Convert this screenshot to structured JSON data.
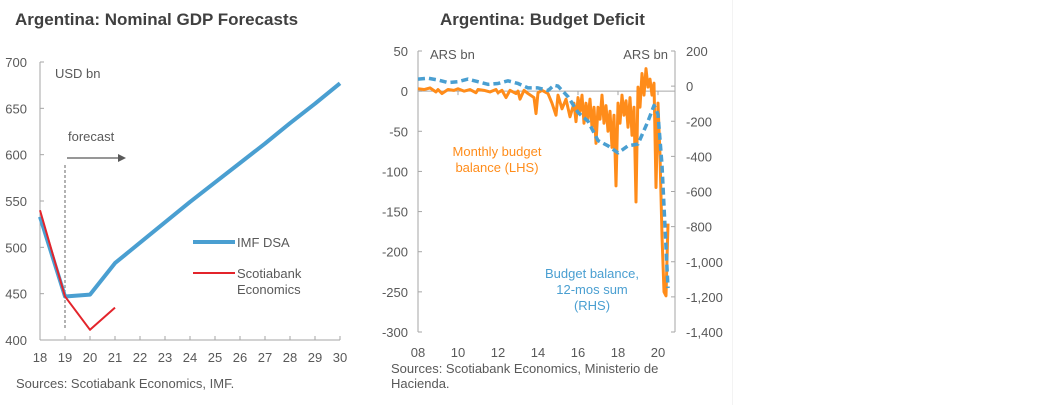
{
  "chart_data": [
    {
      "type": "line",
      "title": "Argentina:  Nominal  GDP Forecasts",
      "unit_label": "USD bn",
      "xlabel": "",
      "ylabel": "USD bn",
      "ylim": [
        400,
        700
      ],
      "y_ticks": [
        400,
        450,
        500,
        550,
        600,
        650,
        700
      ],
      "x": [
        18,
        19,
        20,
        21,
        22,
        23,
        24,
        25,
        26,
        27,
        28,
        29,
        30
      ],
      "x_tick_labels": [
        "18",
        "19",
        "20",
        "21",
        "22",
        "23",
        "24",
        "25",
        "26",
        "27",
        "28",
        "29",
        "30"
      ],
      "forecast_label": "forecast",
      "forecast_start": 19,
      "series": [
        {
          "name": "IMF DSA",
          "color": "#4a9fd1",
          "values": [
            533,
            447,
            449,
            483,
            505,
            527,
            549,
            570,
            591,
            612,
            634,
            655,
            677
          ]
        },
        {
          "name": "Scotiabank Economics",
          "color": "#e3242b",
          "values": [
            540,
            447,
            411,
            435,
            null,
            null,
            null,
            null,
            null,
            null,
            null,
            null,
            null
          ]
        }
      ],
      "legend": {
        "placement": "center-right",
        "entries": [
          "IMF DSA",
          "Scotiabank\nEconomics"
        ]
      },
      "source": "Sources: Scotiabank Economics, IMF.",
      "grid": false
    },
    {
      "type": "line",
      "title": "Argentina:  Budget Deficit",
      "lhs_unit_label": "ARS bn",
      "rhs_unit_label": "ARS bn",
      "ylim": [
        -300,
        50
      ],
      "y_ticks": [
        50,
        0,
        -50,
        -100,
        -150,
        -200,
        -250,
        -300
      ],
      "y_tick_labels": [
        "50",
        "0",
        "-50",
        "-100",
        "-150",
        "-200",
        "-250",
        "-300"
      ],
      "y2lim": [
        -1400,
        200
      ],
      "y2_ticks": [
        200,
        0,
        -200,
        -400,
        -600,
        -800,
        -1000,
        -1200,
        -1400
      ],
      "y2_tick_labels": [
        "200",
        "0",
        "-200",
        "-400",
        "-600",
        "-800",
        "-1,000",
        "-1,200",
        "-1,400"
      ],
      "xlim": [
        2008,
        2020.8
      ],
      "x_ticks": [
        2008,
        2010,
        2012,
        2014,
        2016,
        2018,
        2020
      ],
      "x_tick_labels": [
        "08",
        "10",
        "12",
        "14",
        "16",
        "18",
        "20"
      ],
      "series": [
        {
          "name": "Monthly budget balance (LHS)",
          "axis": "left",
          "color": "#ff8c1a",
          "style": "solid",
          "label": "Monthly budget\nbalance (LHS)",
          "points": [
            [
              2008.0,
              3
            ],
            [
              2008.3,
              2
            ],
            [
              2008.6,
              4
            ],
            [
              2008.9,
              -1
            ],
            [
              2009.0,
              2
            ],
            [
              2009.2,
              -3
            ],
            [
              2009.5,
              2
            ],
            [
              2009.8,
              1
            ],
            [
              2010.0,
              3
            ],
            [
              2010.3,
              0
            ],
            [
              2010.6,
              2
            ],
            [
              2010.9,
              -2
            ],
            [
              2011.0,
              2
            ],
            [
              2011.3,
              1
            ],
            [
              2011.6,
              -1
            ],
            [
              2011.9,
              2
            ],
            [
              2012.0,
              -2
            ],
            [
              2012.2,
              1
            ],
            [
              2012.4,
              -8
            ],
            [
              2012.6,
              1
            ],
            [
              2012.9,
              -3
            ],
            [
              2013.0,
              0
            ],
            [
              2013.1,
              -10
            ],
            [
              2013.3,
              1
            ],
            [
              2013.5,
              -3
            ],
            [
              2013.8,
              -8
            ],
            [
              2013.9,
              -28
            ],
            [
              2014.0,
              -2
            ],
            [
              2014.2,
              1
            ],
            [
              2014.5,
              -3
            ],
            [
              2014.7,
              -15
            ],
            [
              2014.9,
              -30
            ],
            [
              2015.0,
              -5
            ],
            [
              2015.2,
              -22
            ],
            [
              2015.4,
              -10
            ],
            [
              2015.6,
              -32
            ],
            [
              2015.8,
              -15
            ],
            [
              2015.9,
              -38
            ],
            [
              2016.0,
              -8
            ],
            [
              2016.1,
              -25
            ],
            [
              2016.2,
              -5
            ],
            [
              2016.3,
              -40
            ],
            [
              2016.4,
              -15
            ],
            [
              2016.5,
              -35
            ],
            [
              2016.6,
              -10
            ],
            [
              2016.7,
              -45
            ],
            [
              2016.8,
              -20
            ],
            [
              2016.9,
              -65
            ],
            [
              2017.0,
              -20
            ],
            [
              2017.1,
              -35
            ],
            [
              2017.2,
              -5
            ],
            [
              2017.3,
              -40
            ],
            [
              2017.4,
              -18
            ],
            [
              2017.5,
              -50
            ],
            [
              2017.6,
              -25
            ],
            [
              2017.7,
              -70
            ],
            [
              2017.8,
              -30
            ],
            [
              2017.9,
              -118
            ],
            [
              2018.0,
              -15
            ],
            [
              2018.1,
              -40
            ],
            [
              2018.2,
              -5
            ],
            [
              2018.3,
              -30
            ],
            [
              2018.4,
              -12
            ],
            [
              2018.5,
              -45
            ],
            [
              2018.6,
              -8
            ],
            [
              2018.7,
              -55
            ],
            [
              2018.8,
              -20
            ],
            [
              2018.9,
              -138
            ],
            [
              2019.0,
              5
            ],
            [
              2019.1,
              -20
            ],
            [
              2019.2,
              22
            ],
            [
              2019.3,
              -5
            ],
            [
              2019.4,
              28
            ],
            [
              2019.5,
              5
            ],
            [
              2019.6,
              15
            ],
            [
              2019.7,
              -5
            ],
            [
              2019.8,
              10
            ],
            [
              2019.9,
              -120
            ],
            [
              2020.0,
              -15
            ],
            [
              2020.1,
              -80
            ],
            [
              2020.2,
              -180
            ],
            [
              2020.3,
              -250
            ],
            [
              2020.4,
              -255
            ],
            [
              2020.5,
              -165
            ]
          ]
        },
        {
          "name": "Budget balance, 12-mos sum (RHS)",
          "axis": "right",
          "color": "#4a9fd1",
          "style": "dashed",
          "label": "Budget balance,\n12-mos sum\n(RHS)",
          "points": [
            [
              2008.0,
              40
            ],
            [
              2008.5,
              45
            ],
            [
              2009.0,
              35
            ],
            [
              2009.5,
              20
            ],
            [
              2010.0,
              25
            ],
            [
              2010.5,
              40
            ],
            [
              2011.0,
              25
            ],
            [
              2011.5,
              10
            ],
            [
              2012.0,
              15
            ],
            [
              2012.5,
              30
            ],
            [
              2013.0,
              15
            ],
            [
              2013.5,
              -10
            ],
            [
              2014.0,
              -10
            ],
            [
              2014.5,
              -25
            ],
            [
              2014.8,
              5
            ],
            [
              2015.0,
              0
            ],
            [
              2015.5,
              -60
            ],
            [
              2016.0,
              -150
            ],
            [
              2016.5,
              -200
            ],
            [
              2017.0,
              -310
            ],
            [
              2017.5,
              -340
            ],
            [
              2018.0,
              -380
            ],
            [
              2018.5,
              -340
            ],
            [
              2019.0,
              -330
            ],
            [
              2019.5,
              -200
            ],
            [
              2019.8,
              -110
            ],
            [
              2020.0,
              -160
            ],
            [
              2020.2,
              -450
            ],
            [
              2020.35,
              -800
            ],
            [
              2020.5,
              -1150
            ]
          ]
        }
      ],
      "annotations": [
        "Monthly budget balance (LHS)",
        "Budget balance, 12-mos sum (RHS)"
      ],
      "source": "Sources: Scotiabank Economics, Ministerio de Hacienda.",
      "grid": false
    }
  ]
}
